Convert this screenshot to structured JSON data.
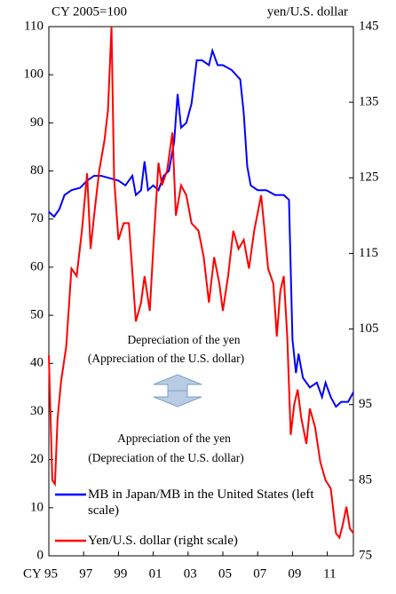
{
  "chart_data": {
    "type": "line",
    "left_note": "CY 2005=100",
    "right_note": "yen/U.S. dollar",
    "annotations": [
      "Depreciation of the yen",
      "(Appreciation of the U.S. dollar)",
      "Appreciation of the yen",
      "(Depreciation of the U.S. dollar)"
    ],
    "xlim": [
      1995,
      2012.5
    ],
    "xticks": [
      {
        "value": 1995,
        "label": "CY 95"
      },
      {
        "value": 1997,
        "label": "97"
      },
      {
        "value": 1999,
        "label": "99"
      },
      {
        "value": 2001,
        "label": "01"
      },
      {
        "value": 2003,
        "label": "03"
      },
      {
        "value": 2005,
        "label": "05"
      },
      {
        "value": 2007,
        "label": "07"
      },
      {
        "value": 2009,
        "label": "09"
      },
      {
        "value": 2011,
        "label": "11"
      }
    ],
    "ylim": [
      0,
      110
    ],
    "yticks": [
      0,
      10,
      20,
      30,
      40,
      50,
      60,
      70,
      80,
      90,
      100,
      110
    ],
    "y2lim": [
      75,
      145
    ],
    "y2ticks": [
      75,
      85,
      95,
      105,
      115,
      125,
      135,
      145
    ],
    "series": [
      {
        "name": "MB in Japan/MB in the United States (left scale)",
        "color": "#0000ff",
        "x": [
          1995.0,
          1995.3,
          1995.6,
          1995.9,
          1996.3,
          1996.8,
          1997.2,
          1997.6,
          1998.0,
          1998.5,
          1999.0,
          1999.4,
          1999.8,
          2000.0,
          2000.3,
          2000.5,
          2000.7,
          2001.0,
          2001.3,
          2001.6,
          2001.9,
          2002.2,
          2002.4,
          2002.6,
          2002.9,
          2003.2,
          2003.5,
          2003.8,
          2004.2,
          2004.4,
          2004.7,
          2005.0,
          2005.5,
          2006.0,
          2006.2,
          2006.4,
          2006.6,
          2007.0,
          2007.5,
          2008.0,
          2008.5,
          2008.8,
          2009.0,
          2009.2,
          2009.35,
          2009.6,
          2010.0,
          2010.4,
          2010.7,
          2010.9,
          2011.2,
          2011.5,
          2011.8,
          2012.2,
          2012.5
        ],
        "values": [
          71.5,
          70.5,
          72,
          75,
          76,
          76.5,
          78,
          79,
          79,
          78.5,
          78,
          77,
          79,
          75,
          76,
          82,
          76,
          77,
          76,
          79,
          80,
          86,
          96,
          89,
          90,
          94,
          103,
          103,
          102,
          105,
          102,
          102,
          101,
          99,
          92,
          81,
          77,
          76,
          76,
          75,
          75,
          74,
          45,
          38,
          42,
          37,
          35,
          36,
          33,
          36,
          33,
          31,
          32,
          32,
          34
        ]
      },
      {
        "name": "Yen/U.S. dollar (right scale)",
        "color": "#ff0000",
        "axis": "y2",
        "x": [
          1995.0,
          1995.2,
          1995.35,
          1995.5,
          1995.7,
          1996.0,
          1996.3,
          1996.6,
          1996.9,
          1997.2,
          1997.4,
          1997.6,
          1997.9,
          1998.2,
          1998.4,
          1998.6,
          1998.75,
          1999.0,
          1999.3,
          1999.6,
          2000.0,
          2000.3,
          2000.5,
          2000.8,
          2001.0,
          2001.3,
          2001.5,
          2001.8,
          2002.1,
          2002.3,
          2002.6,
          2002.9,
          2003.2,
          2003.6,
          2003.9,
          2004.2,
          2004.5,
          2004.8,
          2005.0,
          2005.3,
          2005.6,
          2005.9,
          2006.2,
          2006.5,
          2006.8,
          2007.2,
          2007.4,
          2007.6,
          2007.9,
          2008.1,
          2008.3,
          2008.5,
          2008.7,
          2008.9,
          2009.1,
          2009.3,
          2009.5,
          2009.8,
          2010.0,
          2010.3,
          2010.6,
          2010.9,
          2011.2,
          2011.5,
          2011.7,
          2011.9,
          2012.1,
          2012.3,
          2012.5
        ],
        "values": [
          101.5,
          85,
          84.5,
          93,
          98,
          102.7,
          113,
          112,
          118,
          125.6,
          115.6,
          120,
          126,
          130,
          134,
          145,
          125,
          116.8,
          119,
          119,
          106,
          108.5,
          112,
          107.4,
          115.6,
          127,
          124,
          126,
          131,
          120,
          124,
          122.7,
          119,
          118,
          114.5,
          108.5,
          114.5,
          111,
          107.4,
          112,
          118,
          115.6,
          116.8,
          113,
          118,
          122.7,
          118,
          113,
          111,
          104,
          110,
          112,
          104,
          91,
          95,
          97,
          93.3,
          89.8,
          94.5,
          92,
          87.4,
          85,
          83.9,
          78,
          77.4,
          79.2,
          81.5,
          78.6,
          78
        ]
      }
    ]
  }
}
